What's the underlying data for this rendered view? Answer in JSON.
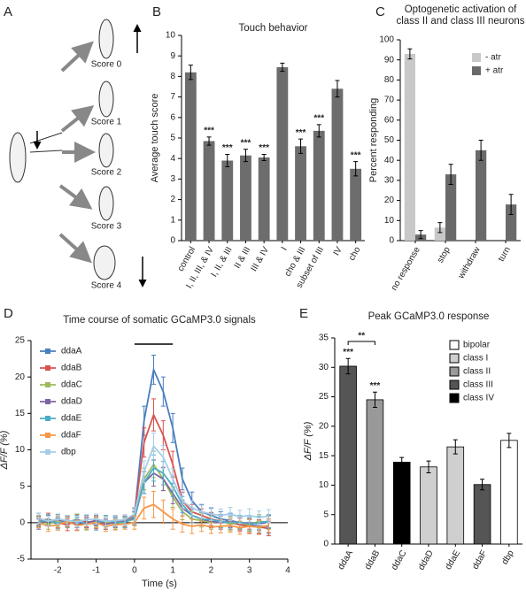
{
  "panel_labels": [
    "A",
    "B",
    "C",
    "D",
    "E"
  ],
  "diagram": {
    "labels": [
      "Score 0",
      "Score 1",
      "Score 2",
      "Score 3",
      "Score 4"
    ]
  },
  "chart_data": [
    {
      "type": "bar",
      "title": "Touch behavior",
      "y_label": "Average touch score",
      "categories": [
        "control",
        "I, II, III, & IV",
        "I, II, & III",
        "II & III",
        "III & IV",
        "I",
        "cho & III",
        "subset of III",
        "IV",
        "cho"
      ],
      "values": [
        8.2,
        4.85,
        3.9,
        4.15,
        4.05,
        8.45,
        4.6,
        5.35,
        7.4,
        3.5
      ],
      "errors": [
        0.35,
        0.2,
        0.3,
        0.3,
        0.15,
        0.2,
        0.35,
        0.3,
        0.4,
        0.35
      ],
      "significance": [
        null,
        "***",
        "***",
        "***",
        "***",
        null,
        "***",
        "***",
        null,
        "***"
      ],
      "color": "#6d6d6d",
      "ylim": [
        0,
        10
      ],
      "yticks": [
        0,
        1,
        2,
        3,
        4,
        5,
        6,
        7,
        8,
        9,
        10
      ]
    },
    {
      "type": "bar",
      "title": [
        "Optogenetic activation of",
        "class II and class III neurons"
      ],
      "y_label": "Percent responding",
      "categories": [
        "no response",
        "stop",
        "withdraw",
        "turn"
      ],
      "series": [
        {
          "name": "- atr",
          "color": "#c8c8c8",
          "values": [
            93,
            6.5,
            null,
            null
          ],
          "errors": [
            2.5,
            2.5,
            null,
            null
          ]
        },
        {
          "name": "+ atr",
          "color": "#6a6a6a",
          "values": [
            3,
            33,
            45,
            18
          ],
          "errors": [
            2,
            5,
            5,
            5
          ]
        }
      ],
      "legend": "upper right",
      "ylim": [
        0,
        100
      ],
      "yticks": [
        0,
        10,
        20,
        30,
        40,
        50,
        60,
        70,
        80,
        90,
        100
      ]
    },
    {
      "type": "line",
      "title": "Time course of somatic GCaMP3.0 signals",
      "x_label": "Time (s)",
      "y_label": "ΔF/F (%)",
      "x": [
        -2.5,
        -2.25,
        -2,
        -1.75,
        -1.5,
        -1.25,
        -1,
        -0.75,
        -0.5,
        -0.25,
        0,
        0.25,
        0.5,
        0.75,
        1,
        1.25,
        1.5,
        1.75,
        2,
        2.25,
        2.5,
        2.75,
        3,
        3.25,
        3.5
      ],
      "stimulus": [
        0,
        1
      ],
      "series": [
        {
          "name": "ddaA",
          "color": "#4a7ebf",
          "values": [
            0.5,
            0.3,
            -0.2,
            0.3,
            0,
            0.2,
            -0.3,
            0.2,
            0.1,
            0,
            1,
            14,
            21,
            18,
            13,
            6,
            3,
            1.5,
            1,
            0.5,
            0.3,
            0,
            -0.3,
            -0.5,
            -0.5
          ],
          "errors": [
            0.8,
            0.7,
            0.8,
            0.7,
            0.7,
            0.8,
            0.7,
            0.8,
            0.7,
            0.7,
            1,
            2,
            2,
            2,
            2,
            1.5,
            1.2,
            1,
            1,
            1,
            1,
            0.9,
            0.9,
            0.9,
            1
          ]
        },
        {
          "name": "ddaB",
          "color": "#d9534f",
          "values": [
            0.2,
            0.5,
            0,
            -0.3,
            0.4,
            0.1,
            0,
            -0.2,
            0.3,
            0.2,
            1,
            11,
            14.8,
            12,
            8,
            3,
            1.5,
            1,
            0.5,
            0.2,
            0,
            -0.3,
            -0.5,
            -0.6,
            -0.8
          ],
          "errors": [
            0.7,
            0.8,
            0.7,
            0.8,
            0.7,
            0.7,
            0.8,
            0.7,
            0.7,
            0.7,
            1,
            2,
            2.2,
            2,
            1.8,
            1.2,
            1,
            0.9,
            0.9,
            0.9,
            0.9,
            0.9,
            1,
            1,
            1
          ]
        },
        {
          "name": "ddaC",
          "color": "#9bbb59",
          "values": [
            0.3,
            -0.2,
            0.2,
            0,
            0.5,
            -0.3,
            0.2,
            0.1,
            -0.2,
            0.1,
            0.5,
            6,
            8,
            6,
            3.5,
            1.5,
            0.5,
            0.3,
            0,
            0.2,
            -0.2,
            0,
            -0.3,
            0.2,
            0
          ],
          "errors": [
            0.7,
            0.7,
            0.7,
            0.7,
            0.7,
            0.7,
            0.7,
            0.7,
            0.7,
            0.7,
            0.9,
            1.5,
            1.8,
            1.6,
            1.4,
            1.1,
            1,
            0.9,
            0.9,
            0.9,
            0.9,
            0.9,
            0.9,
            0.9,
            0.9
          ]
        },
        {
          "name": "ddaD",
          "color": "#8064a2",
          "values": [
            -0.2,
            0.3,
            0.4,
            0.1,
            -0.3,
            0,
            0.3,
            -0.2,
            0,
            0.2,
            0.6,
            5.5,
            6.8,
            6,
            4,
            2,
            1,
            0.5,
            0.2,
            0,
            0.3,
            -0.1,
            0,
            -0.2,
            0.1
          ],
          "errors": [
            0.7,
            0.7,
            0.7,
            0.7,
            0.7,
            0.7,
            0.7,
            0.7,
            0.7,
            0.7,
            0.9,
            1.5,
            1.8,
            1.6,
            1.4,
            1.1,
            1,
            0.9,
            0.9,
            0.9,
            0.9,
            0.9,
            0.9,
            0.9,
            0.9
          ]
        },
        {
          "name": "ddaE",
          "color": "#4bacc6",
          "values": [
            0.1,
            0.4,
            -0.1,
            0.2,
            0.3,
            -0.2,
            0,
            0.3,
            0.1,
            0,
            0.8,
            5.5,
            7.5,
            6.8,
            5,
            2.5,
            1,
            0.5,
            0.4,
            0.2,
            0,
            0.1,
            -0.2,
            0,
            0.2
          ],
          "errors": [
            0.7,
            0.7,
            0.7,
            0.7,
            0.7,
            0.7,
            0.7,
            0.7,
            0.7,
            0.7,
            0.9,
            1.5,
            1.8,
            1.6,
            1.4,
            1.1,
            1,
            0.9,
            0.9,
            0.9,
            0.9,
            0.9,
            0.9,
            0.9,
            0.9
          ]
        },
        {
          "name": "ddaF",
          "color": "#f79646",
          "values": [
            0,
            -0.5,
            -0.3,
            0.2,
            -0.4,
            -0.2,
            0,
            -0.5,
            -0.3,
            -0.2,
            0,
            2,
            2.5,
            1.5,
            0.5,
            -0.2,
            -0.5,
            -0.3,
            -0.6,
            -0.5,
            -0.4,
            -0.7,
            -0.5,
            -0.6,
            -0.4
          ],
          "errors": [
            0.7,
            0.7,
            0.7,
            0.7,
            0.7,
            0.7,
            0.7,
            0.7,
            0.7,
            0.7,
            0.9,
            1.5,
            1.8,
            1.6,
            1.4,
            1.1,
            1,
            0.9,
            0.9,
            0.9,
            0.9,
            0.9,
            0.9,
            0.9,
            0.9
          ]
        },
        {
          "name": "dbp",
          "color": "#a6cde8",
          "values": [
            0.6,
            0.2,
            0.5,
            0.3,
            0.1,
            0.4,
            0.5,
            0.2,
            0.3,
            0.4,
            1.2,
            7,
            10.5,
            9,
            6,
            3,
            2,
            1.5,
            1.2,
            1,
            1.2,
            0.8,
            1,
            0.7,
            0.9
          ],
          "errors": [
            0.7,
            0.7,
            0.7,
            0.7,
            0.7,
            0.7,
            0.7,
            0.7,
            0.7,
            0.7,
            0.9,
            1.5,
            1.8,
            1.6,
            1.4,
            1.1,
            1,
            0.9,
            0.9,
            0.9,
            0.9,
            0.9,
            0.9,
            0.9,
            0.9
          ]
        }
      ],
      "legend": "upper left",
      "xlim": [
        -2.7,
        4
      ],
      "xticks": [
        -2,
        -1,
        0,
        1,
        2,
        3,
        4
      ],
      "ylim": [
        -5,
        25
      ],
      "yticks": [
        -5,
        0,
        5,
        10,
        15,
        20,
        25
      ]
    },
    {
      "type": "bar",
      "title": "Peak GCaMP3.0 response",
      "y_label": "ΔF/F (%)",
      "categories": [
        "ddaA",
        "ddaB",
        "ddaC",
        "ddaD",
        "ddaE",
        "ddaF",
        "dbp"
      ],
      "values": [
        30.2,
        24.5,
        13.9,
        13.1,
        16.5,
        10.1,
        17.6
      ],
      "errors": [
        1.3,
        1.3,
        0.8,
        1.0,
        1.2,
        0.9,
        1.2
      ],
      "significance": [
        "***",
        "***",
        null,
        null,
        null,
        null,
        null
      ],
      "comparisons": [
        {
          "between": [
            0,
            1
          ],
          "label": "**"
        }
      ],
      "classes": [
        {
          "name": "bipolar",
          "color": "#ffffff"
        },
        {
          "name": "class I",
          "color": "#cfcfcf"
        },
        {
          "name": "class II",
          "color": "#999999"
        },
        {
          "name": "class III",
          "color": "#555555"
        },
        {
          "name": "class IV",
          "color": "#000000"
        }
      ],
      "bar_class": [
        3,
        2,
        4,
        1,
        1,
        3,
        0
      ],
      "legend": "upper right",
      "ylim": [
        0,
        35
      ],
      "yticks": [
        0,
        5,
        10,
        15,
        20,
        25,
        30,
        35
      ]
    }
  ]
}
